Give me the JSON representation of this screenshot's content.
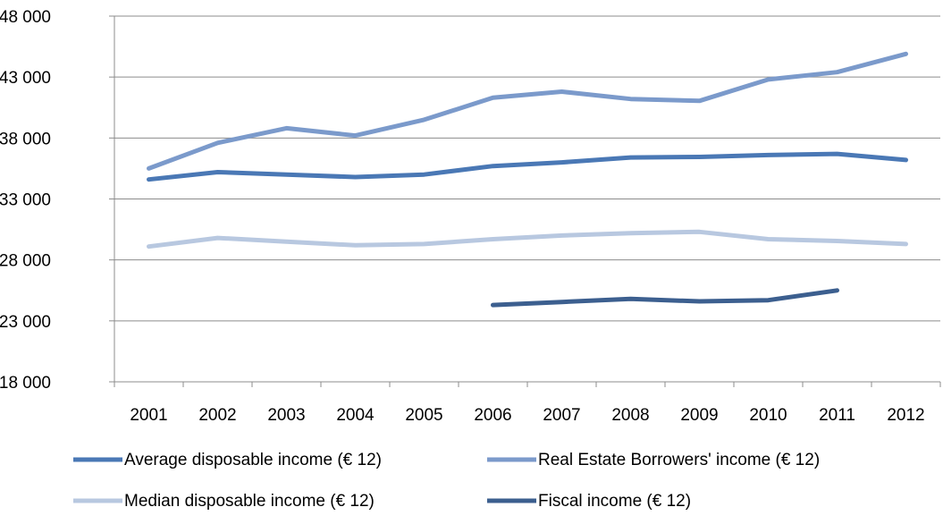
{
  "chart_data": {
    "type": "line",
    "title": "",
    "xlabel": "",
    "ylabel": "",
    "ylim": [
      18000,
      48000
    ],
    "yticks": [
      18000,
      23000,
      28000,
      33000,
      38000,
      43000,
      48000
    ],
    "ytick_labels": [
      "18 000",
      "23 000",
      "28 000",
      "33 000",
      "38 000",
      "43 000",
      "48 000"
    ],
    "categories": [
      "2001",
      "2002",
      "2003",
      "2004",
      "2005",
      "2006",
      "2007",
      "2008",
      "2009",
      "2010",
      "2011",
      "2012"
    ],
    "grid": "horizontal",
    "legend_position": "bottom",
    "series": [
      {
        "name": "Average disposable income (€ 12)",
        "color": "#4a78b5",
        "values": [
          34600,
          35200,
          35000,
          34800,
          35000,
          35700,
          36000,
          36400,
          36450,
          36600,
          36700,
          36200
        ]
      },
      {
        "name": "Real Estate Borrowers' income (€ 12)",
        "color": "#7b9acb",
        "values": [
          35500,
          37600,
          38800,
          38200,
          39500,
          41300,
          41800,
          41200,
          41050,
          42800,
          43400,
          44900
        ]
      },
      {
        "name": "Median disposable income (€ 12)",
        "color": "#b8c8e0",
        "values": [
          29100,
          29800,
          29500,
          29200,
          29300,
          29700,
          30000,
          30200,
          30300,
          29700,
          29550,
          29300
        ]
      },
      {
        "name": "Fiscal income (€ 12)",
        "color": "#3c5f8f",
        "values": [
          null,
          null,
          null,
          null,
          null,
          24300,
          24550,
          24800,
          24600,
          24700,
          25500,
          null
        ]
      }
    ]
  }
}
